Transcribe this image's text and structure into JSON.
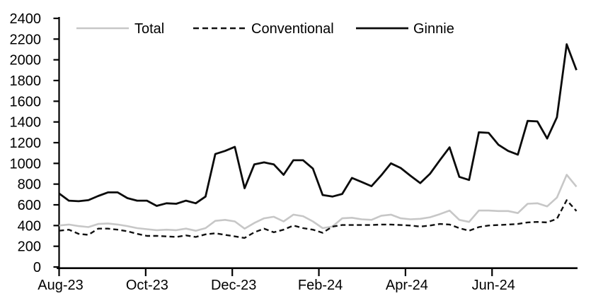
{
  "chart_data": {
    "type": "line",
    "title": "",
    "xlabel": "",
    "ylabel": "",
    "ylim": [
      0,
      2400
    ],
    "y_ticks": [
      0,
      200,
      400,
      600,
      800,
      1000,
      1200,
      1400,
      1600,
      1800,
      2000,
      2200,
      2400
    ],
    "x_tick_labels": [
      "Aug-23",
      "Oct-23",
      "Dec-23",
      "Feb-24",
      "Apr-24",
      "Jun-24"
    ],
    "x_frequency": "weekly",
    "grid": false,
    "legend_position": "top",
    "axis_color": "#000000",
    "background_color": "#ffffff",
    "series": [
      {
        "name": "Total",
        "color": "#c7c7c7",
        "style": "solid",
        "stroke_width": 2.6,
        "values": [
          400,
          410,
          395,
          385,
          415,
          420,
          410,
          395,
          375,
          365,
          355,
          360,
          355,
          370,
          350,
          375,
          445,
          455,
          440,
          370,
          425,
          470,
          485,
          440,
          505,
          490,
          440,
          375,
          390,
          470,
          475,
          460,
          455,
          495,
          505,
          470,
          460,
          465,
          480,
          510,
          545,
          455,
          435,
          545,
          545,
          540,
          540,
          520,
          610,
          615,
          585,
          670,
          890,
          775
        ]
      },
      {
        "name": "Conventional",
        "color": "#111111",
        "style": "dashed",
        "stroke_width": 2.4,
        "values": [
          350,
          360,
          320,
          310,
          370,
          370,
          360,
          345,
          320,
          300,
          300,
          295,
          290,
          305,
          290,
          315,
          325,
          310,
          295,
          280,
          335,
          370,
          335,
          360,
          400,
          375,
          360,
          330,
          390,
          405,
          405,
          405,
          405,
          410,
          410,
          405,
          400,
          390,
          400,
          415,
          410,
          375,
          350,
          385,
          400,
          405,
          410,
          415,
          430,
          435,
          430,
          465,
          645,
          540
        ]
      },
      {
        "name": "Ginnie",
        "color": "#0b0b0b",
        "style": "solid",
        "stroke_width": 2.8,
        "values": [
          710,
          640,
          635,
          645,
          685,
          720,
          720,
          665,
          640,
          640,
          590,
          615,
          610,
          640,
          615,
          680,
          1090,
          1120,
          1160,
          760,
          990,
          1010,
          990,
          890,
          1030,
          1030,
          950,
          695,
          680,
          705,
          860,
          820,
          780,
          885,
          1000,
          955,
          880,
          810,
          900,
          1030,
          1155,
          870,
          840,
          1300,
          1295,
          1180,
          1120,
          1085,
          1410,
          1405,
          1240,
          1445,
          2150,
          1900
        ]
      }
    ]
  }
}
